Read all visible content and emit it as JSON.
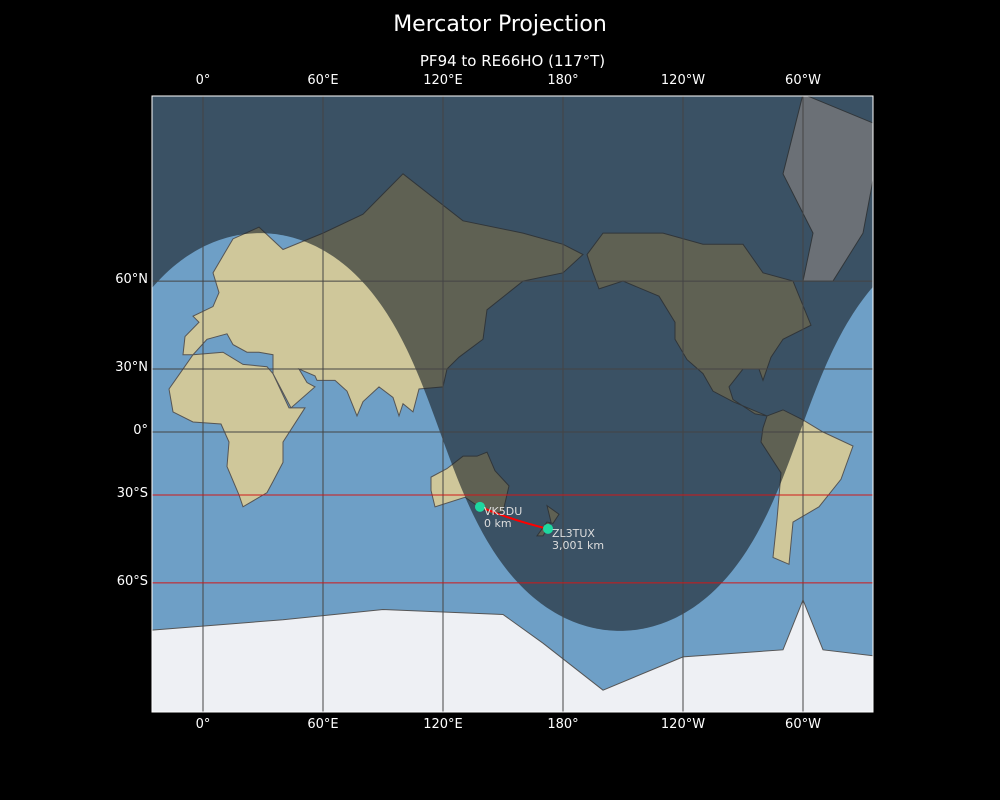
{
  "title": "Mercator Projection",
  "subtitle": "PF94 to RE66HO (117°T)",
  "x_ticks": [
    {
      "lon": 0,
      "label": "0°"
    },
    {
      "lon": 60,
      "label": "60°E"
    },
    {
      "lon": 120,
      "label": "120°E"
    },
    {
      "lon": 180,
      "label": "180°"
    },
    {
      "lon": 240,
      "label": "120°W"
    },
    {
      "lon": 300,
      "label": "60°W"
    }
  ],
  "y_ticks": [
    {
      "lat": 60,
      "label": "60°N"
    },
    {
      "lat": 30,
      "label": "30°N"
    },
    {
      "lat": 0,
      "label": "0°"
    },
    {
      "lat": -30,
      "label": "30°S"
    },
    {
      "lat": -60,
      "label": "60°S"
    }
  ],
  "highlight_latitudes": [
    -30,
    -60
  ],
  "stations": [
    {
      "call": "VK5DU",
      "distance": "0 km",
      "lon": 138.5,
      "lat": -35
    },
    {
      "call": "ZL3TUX",
      "distance": "3,001 km",
      "lon": 172.5,
      "lat": -43.5
    }
  ],
  "colors": {
    "path": "#ff0000",
    "station": "#1ed8a0",
    "highlight_line": "#d01818",
    "ocean": "#6e9fc6",
    "land": "#cfc79a",
    "night": "#1a2228"
  }
}
